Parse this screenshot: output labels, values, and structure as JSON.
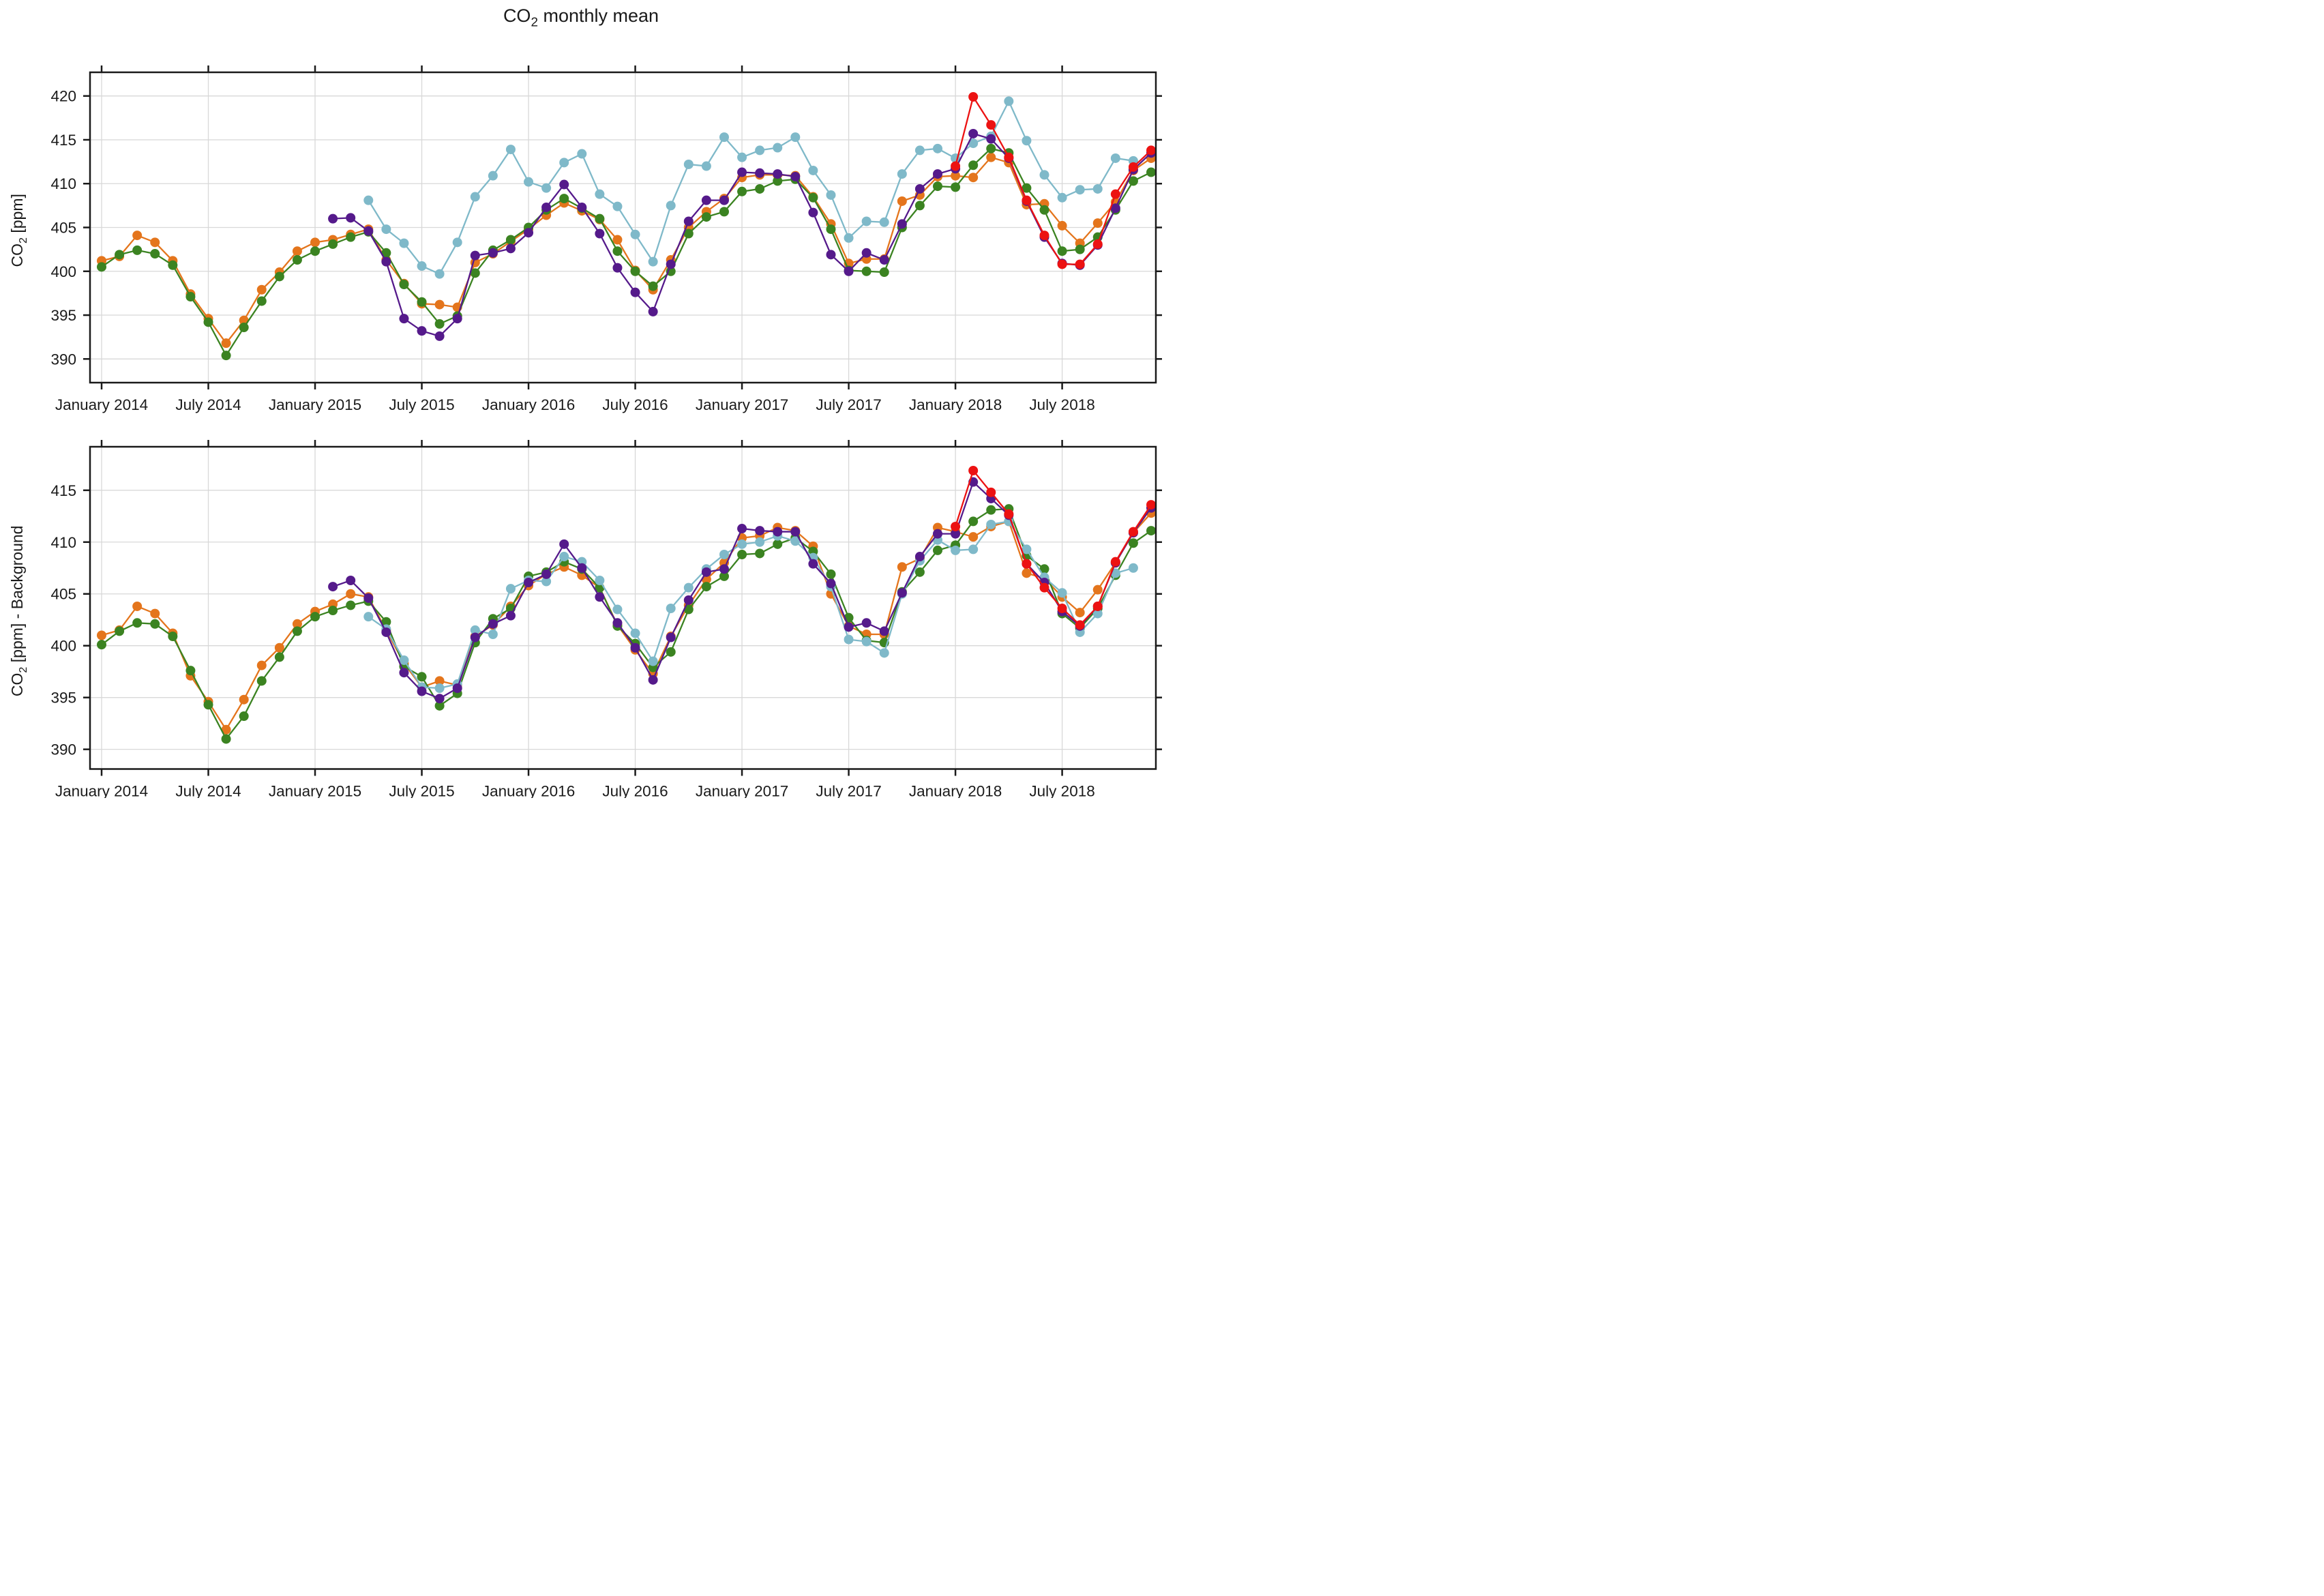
{
  "title": "CO2 monthly mean",
  "chart_data": [
    {
      "type": "line",
      "name": "co2-monthly-mean",
      "title": "CO2 monthly mean",
      "xlabel": "",
      "ylabel": "CO2 [ppm]",
      "ylim": [
        387.3,
        422.7
      ],
      "yticks": [
        390,
        395,
        400,
        405,
        410,
        415,
        420
      ],
      "grid": true,
      "legend": "none",
      "months": [
        "2014-01",
        "2014-02",
        "2014-03",
        "2014-04",
        "2014-05",
        "2014-06",
        "2014-07",
        "2014-08",
        "2014-09",
        "2014-10",
        "2014-11",
        "2014-12",
        "2015-01",
        "2015-02",
        "2015-03",
        "2015-04",
        "2015-05",
        "2015-06",
        "2015-07",
        "2015-08",
        "2015-09",
        "2015-10",
        "2015-11",
        "2015-12",
        "2016-01",
        "2016-02",
        "2016-03",
        "2016-04",
        "2016-05",
        "2016-06",
        "2016-07",
        "2016-08",
        "2016-09",
        "2016-10",
        "2016-11",
        "2016-12",
        "2017-01",
        "2017-02",
        "2017-03",
        "2017-04",
        "2017-05",
        "2017-06",
        "2017-07",
        "2017-08",
        "2017-09",
        "2017-10",
        "2017-11",
        "2017-12",
        "2018-01",
        "2018-02",
        "2018-03",
        "2018-04",
        "2018-05",
        "2018-06",
        "2018-07",
        "2018-08",
        "2018-09",
        "2018-10",
        "2018-11",
        "2018-12"
      ],
      "xtick_month_indices": [
        0,
        6,
        12,
        18,
        24,
        30,
        36,
        42,
        48,
        54
      ],
      "xtick_labels": [
        "January 2014",
        "July 2014",
        "January 2015",
        "July 2015",
        "January 2016",
        "July 2016",
        "January 2017",
        "July 2017",
        "January 2018",
        "July 2018"
      ],
      "series": [
        {
          "name": "orange",
          "color": "#E4751C",
          "values": [
            401.2,
            401.7,
            404.1,
            403.3,
            401.2,
            397.4,
            394.6,
            391.8,
            394.4,
            397.9,
            399.9,
            402.3,
            403.3,
            403.6,
            404.2,
            404.8,
            401.3,
            398.6,
            396.3,
            396.2,
            395.9,
            401.0,
            402.0,
            403.4,
            404.8,
            406.4,
            407.8,
            406.9,
            405.9,
            403.6,
            400.1,
            397.9,
            401.3,
            405.0,
            406.8,
            408.3,
            410.7,
            411.0,
            411.0,
            410.9,
            408.5,
            405.4,
            400.9,
            401.4,
            401.4,
            408.0,
            408.7,
            410.8,
            410.9,
            410.7,
            413.0,
            412.4,
            407.6,
            407.7,
            405.2,
            403.2,
            405.5,
            407.9,
            411.5,
            412.9
          ]
        },
        {
          "name": "green",
          "color": "#3B8321",
          "values": [
            400.5,
            401.9,
            402.4,
            402.0,
            400.7,
            397.1,
            394.2,
            390.4,
            393.6,
            396.6,
            399.4,
            401.3,
            402.3,
            403.1,
            403.9,
            404.5,
            402.1,
            398.5,
            396.5,
            394.0,
            394.9,
            399.8,
            402.4,
            403.6,
            405.0,
            407.0,
            408.3,
            407.2,
            406.0,
            402.3,
            400.0,
            398.3,
            400.0,
            404.3,
            406.2,
            406.8,
            409.1,
            409.4,
            410.3,
            410.5,
            408.4,
            404.8,
            400.1,
            400.0,
            399.9,
            405.0,
            407.5,
            409.7,
            409.6,
            412.1,
            414.0,
            413.5,
            409.5,
            407.0,
            402.3,
            402.5,
            403.9,
            407.0,
            410.3,
            411.3
          ]
        },
        {
          "name": "lightblue",
          "color": "#7FB9C9",
          "values": [
            null,
            null,
            null,
            null,
            null,
            null,
            null,
            null,
            null,
            null,
            null,
            null,
            null,
            null,
            null,
            408.1,
            404.8,
            403.2,
            400.6,
            399.7,
            403.3,
            408.5,
            410.9,
            413.9,
            410.2,
            409.5,
            412.4,
            413.4,
            408.8,
            407.4,
            404.2,
            401.1,
            407.5,
            412.2,
            412.0,
            415.3,
            413.0,
            413.8,
            414.1,
            415.3,
            411.5,
            408.7,
            403.8,
            405.7,
            405.6,
            411.1,
            413.8,
            414.0,
            412.9,
            414.6,
            415.4,
            419.4,
            414.9,
            411.0,
            408.4,
            409.3,
            409.4,
            412.9,
            412.6,
            null
          ]
        },
        {
          "name": "purple",
          "color": "#551A8B",
          "values": [
            null,
            null,
            null,
            null,
            null,
            null,
            null,
            null,
            null,
            null,
            null,
            null,
            null,
            406.0,
            406.1,
            404.6,
            401.1,
            394.6,
            393.2,
            392.6,
            394.6,
            401.8,
            402.1,
            402.6,
            404.4,
            407.3,
            409.9,
            407.3,
            404.3,
            400.4,
            397.6,
            395.4,
            400.8,
            405.7,
            408.1,
            408.1,
            411.3,
            411.2,
            411.1,
            410.8,
            406.7,
            401.9,
            400.0,
            402.1,
            401.3,
            405.4,
            409.4,
            411.1,
            411.7,
            415.7,
            415.1,
            412.9,
            408.0,
            403.9,
            400.9,
            400.7,
            403.0,
            407.2,
            411.6,
            413.5
          ]
        },
        {
          "name": "red",
          "color": "#EC1212",
          "values": [
            null,
            null,
            null,
            null,
            null,
            null,
            null,
            null,
            null,
            null,
            null,
            null,
            null,
            null,
            null,
            null,
            null,
            null,
            null,
            null,
            null,
            null,
            null,
            null,
            null,
            null,
            null,
            null,
            null,
            null,
            null,
            null,
            null,
            null,
            null,
            null,
            null,
            null,
            null,
            null,
            null,
            null,
            null,
            null,
            null,
            null,
            null,
            null,
            412.0,
            419.9,
            416.7,
            413.0,
            408.1,
            404.1,
            400.8,
            400.8,
            403.1,
            408.8,
            411.9,
            413.8
          ]
        }
      ]
    },
    {
      "type": "line",
      "name": "co2-monthly-mean-minus-background",
      "title": "",
      "xlabel": "",
      "ylabel": "CO2 [ppm] - Background",
      "ylim": [
        388.1,
        419.2
      ],
      "yticks": [
        390,
        395,
        400,
        405,
        410,
        415
      ],
      "grid": true,
      "legend": "none",
      "months": [
        "2014-01",
        "2014-02",
        "2014-03",
        "2014-04",
        "2014-05",
        "2014-06",
        "2014-07",
        "2014-08",
        "2014-09",
        "2014-10",
        "2014-11",
        "2014-12",
        "2015-01",
        "2015-02",
        "2015-03",
        "2015-04",
        "2015-05",
        "2015-06",
        "2015-07",
        "2015-08",
        "2015-09",
        "2015-10",
        "2015-11",
        "2015-12",
        "2016-01",
        "2016-02",
        "2016-03",
        "2016-04",
        "2016-05",
        "2016-06",
        "2016-07",
        "2016-08",
        "2016-09",
        "2016-10",
        "2016-11",
        "2016-12",
        "2017-01",
        "2017-02",
        "2017-03",
        "2017-04",
        "2017-05",
        "2017-06",
        "2017-07",
        "2017-08",
        "2017-09",
        "2017-10",
        "2017-11",
        "2017-12",
        "2018-01",
        "2018-02",
        "2018-03",
        "2018-04",
        "2018-05",
        "2018-06",
        "2018-07",
        "2018-08",
        "2018-09",
        "2018-10",
        "2018-11",
        "2018-12"
      ],
      "xtick_month_indices": [
        0,
        6,
        12,
        18,
        24,
        30,
        36,
        42,
        48,
        54
      ],
      "xtick_labels": [
        "January 2014",
        "July 2014",
        "January 2015",
        "July 2015",
        "January 2016",
        "July 2016",
        "January 2017",
        "July 2017",
        "January 2018",
        "July 2018"
      ],
      "series": [
        {
          "name": "orange",
          "color": "#E4751C",
          "values": [
            401.0,
            401.5,
            403.8,
            403.1,
            401.2,
            397.1,
            394.6,
            391.9,
            394.8,
            398.1,
            399.8,
            402.1,
            403.3,
            404.0,
            405.0,
            404.7,
            401.5,
            398.3,
            396.0,
            396.6,
            396.2,
            400.9,
            402.0,
            403.8,
            405.8,
            406.9,
            407.6,
            406.8,
            405.6,
            402.0,
            399.6,
            397.3,
            400.9,
            403.9,
            406.4,
            408.0,
            410.4,
            410.6,
            411.4,
            411.1,
            409.6,
            405.0,
            401.9,
            401.1,
            401.1,
            407.6,
            408.4,
            411.4,
            411.0,
            410.5,
            411.5,
            412.0,
            407.0,
            406.5,
            404.7,
            403.2,
            405.4,
            408.0,
            410.9,
            412.8
          ]
        },
        {
          "name": "green",
          "color": "#3B8321",
          "values": [
            400.1,
            401.4,
            402.2,
            402.1,
            400.9,
            397.6,
            394.3,
            391.0,
            393.2,
            396.6,
            398.9,
            401.4,
            402.8,
            403.4,
            403.9,
            404.3,
            402.3,
            398.0,
            397.0,
            394.2,
            395.4,
            400.3,
            402.6,
            403.6,
            406.7,
            407.1,
            408.1,
            407.4,
            405.6,
            401.9,
            400.2,
            397.9,
            399.4,
            403.5,
            405.7,
            406.7,
            408.8,
            408.9,
            409.8,
            410.4,
            409.1,
            406.9,
            402.7,
            400.5,
            400.3,
            405.2,
            407.1,
            409.2,
            409.7,
            412.0,
            413.1,
            413.2,
            408.7,
            407.4,
            403.1,
            401.7,
            403.6,
            406.8,
            409.9,
            411.1
          ]
        },
        {
          "name": "lightblue",
          "color": "#7FB9C9",
          "values": [
            null,
            null,
            null,
            null,
            null,
            null,
            null,
            null,
            null,
            null,
            null,
            null,
            null,
            null,
            null,
            402.8,
            401.6,
            398.6,
            396.0,
            395.9,
            396.3,
            401.5,
            401.1,
            405.5,
            406.3,
            406.2,
            408.6,
            408.1,
            406.3,
            403.5,
            401.2,
            398.5,
            403.6,
            405.6,
            407.4,
            408.8,
            409.8,
            410.0,
            410.6,
            410.1,
            408.5,
            405.7,
            400.6,
            400.4,
            399.3,
            405.0,
            408.2,
            410.2,
            409.2,
            409.3,
            411.7,
            412.0,
            409.3,
            406.6,
            405.1,
            401.3,
            403.1,
            407.0,
            407.5,
            null
          ]
        },
        {
          "name": "purple",
          "color": "#551A8B",
          "values": [
            null,
            null,
            null,
            null,
            null,
            null,
            null,
            null,
            null,
            null,
            null,
            null,
            null,
            405.7,
            406.3,
            404.6,
            401.3,
            397.4,
            395.6,
            394.9,
            395.9,
            400.8,
            402.1,
            402.9,
            406.1,
            406.9,
            409.8,
            407.5,
            404.7,
            402.2,
            399.8,
            396.7,
            400.8,
            404.4,
            407.1,
            407.4,
            411.3,
            411.1,
            411.0,
            411.0,
            407.9,
            406.0,
            401.8,
            402.2,
            401.4,
            405.1,
            408.6,
            410.8,
            410.8,
            415.8,
            414.2,
            412.6,
            407.9,
            406.1,
            403.3,
            401.9,
            403.8,
            408.0,
            410.9,
            413.3
          ]
        },
        {
          "name": "red",
          "color": "#EC1212",
          "values": [
            null,
            null,
            null,
            null,
            null,
            null,
            null,
            null,
            null,
            null,
            null,
            null,
            null,
            null,
            null,
            null,
            null,
            null,
            null,
            null,
            null,
            null,
            null,
            null,
            null,
            null,
            null,
            null,
            null,
            null,
            null,
            null,
            null,
            null,
            null,
            null,
            null,
            null,
            null,
            null,
            null,
            null,
            null,
            null,
            null,
            null,
            null,
            null,
            411.5,
            416.9,
            414.8,
            412.7,
            407.9,
            405.6,
            403.6,
            402.0,
            403.8,
            408.1,
            411.0,
            413.6
          ]
        }
      ]
    }
  ],
  "colors": {
    "grid": "#d8d8d8",
    "frame": "#1a1a1a",
    "background": "#ffffff"
  }
}
